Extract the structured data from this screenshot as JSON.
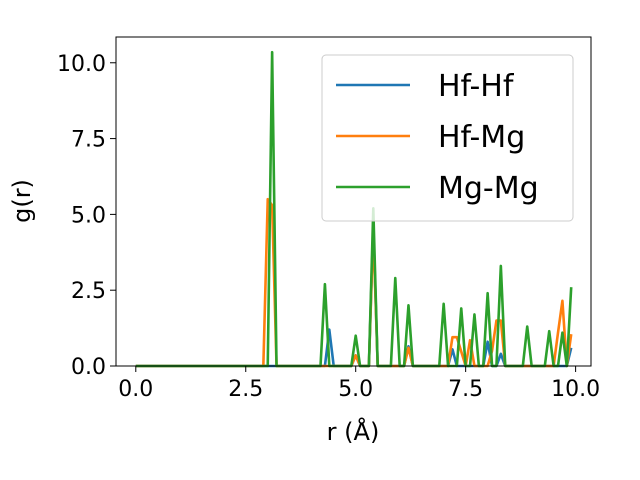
{
  "chart_data": {
    "type": "line",
    "xlabel": "r (Å)",
    "ylabel": "g(r)",
    "xlim": [
      -0.45,
      10.35
    ],
    "ylim": [
      0,
      10.85
    ],
    "xticks": [
      0.0,
      2.5,
      5.0,
      7.5,
      10.0
    ],
    "xtick_labels": [
      "0.0",
      "2.5",
      "5.0",
      "7.5",
      "10.0"
    ],
    "yticks": [
      0.0,
      2.5,
      5.0,
      7.5,
      10.0
    ],
    "ytick_labels": [
      "0.0",
      "2.5",
      "5.0",
      "7.5",
      "10.0"
    ],
    "grid": false,
    "legend_position": "top-right",
    "series": [
      {
        "name": "Hf-Hf",
        "color": "#1f77b4",
        "x": [
          0.0,
          4.3,
          4.4,
          4.5,
          4.9,
          5.0,
          5.1,
          5.3,
          5.4,
          5.5,
          6.1,
          6.2,
          6.3,
          7.1,
          7.2,
          7.3,
          7.9,
          8.0,
          8.1,
          8.2,
          8.3,
          8.4,
          9.8,
          9.9
        ],
        "y": [
          0.0,
          0.0,
          1.2,
          0.0,
          0.0,
          0.35,
          0.0,
          0.0,
          4.7,
          0.0,
          0.0,
          0.65,
          0.0,
          0.0,
          0.55,
          0.0,
          0.0,
          0.8,
          0.0,
          0.0,
          0.4,
          0.0,
          0.0,
          0.6
        ]
      },
      {
        "name": "Hf-Mg",
        "color": "#ff7f0e",
        "x": [
          0.0,
          2.9,
          3.0,
          3.1,
          3.2,
          4.9,
          5.0,
          5.1,
          5.3,
          5.4,
          5.5,
          6.1,
          6.2,
          6.3,
          7.1,
          7.2,
          7.3,
          7.5,
          7.6,
          7.7,
          8.0,
          8.1,
          8.2,
          8.3,
          8.4,
          9.5,
          9.6,
          9.7,
          9.8,
          9.9
        ],
        "y": [
          0.0,
          0.0,
          5.5,
          5.3,
          0.0,
          0.0,
          0.35,
          0.0,
          0.0,
          4.5,
          0.0,
          0.0,
          0.6,
          0.0,
          0.0,
          0.95,
          0.95,
          0.0,
          0.85,
          0.0,
          0.0,
          0.5,
          1.5,
          1.5,
          0.0,
          0.0,
          1.1,
          2.15,
          0.0,
          1.05
        ]
      },
      {
        "name": "Mg-Mg",
        "color": "#2ca02c",
        "x": [
          0.0,
          3.0,
          3.1,
          3.2,
          4.2,
          4.3,
          4.4,
          4.9,
          5.0,
          5.1,
          5.3,
          5.4,
          5.5,
          5.8,
          5.9,
          6.0,
          6.1,
          6.2,
          6.3,
          6.9,
          7.0,
          7.1,
          7.3,
          7.4,
          7.5,
          7.6,
          7.7,
          7.8,
          7.9,
          8.0,
          8.1,
          8.2,
          8.3,
          8.4,
          8.8,
          8.9,
          9.0,
          9.3,
          9.4,
          9.5,
          9.6,
          9.7,
          9.8,
          9.9
        ],
        "y": [
          0.0,
          0.0,
          10.35,
          0.0,
          0.0,
          2.7,
          0.0,
          0.0,
          1.0,
          0.0,
          0.0,
          5.2,
          0.0,
          0.0,
          2.9,
          0.0,
          0.0,
          2.0,
          0.0,
          0.0,
          2.05,
          0.0,
          0.0,
          1.9,
          0.0,
          0.0,
          1.7,
          0.0,
          0.0,
          2.4,
          0.0,
          0.0,
          3.3,
          0.0,
          0.0,
          1.3,
          0.0,
          0.0,
          1.15,
          0.0,
          0.0,
          1.1,
          0.0,
          2.6
        ]
      }
    ]
  }
}
